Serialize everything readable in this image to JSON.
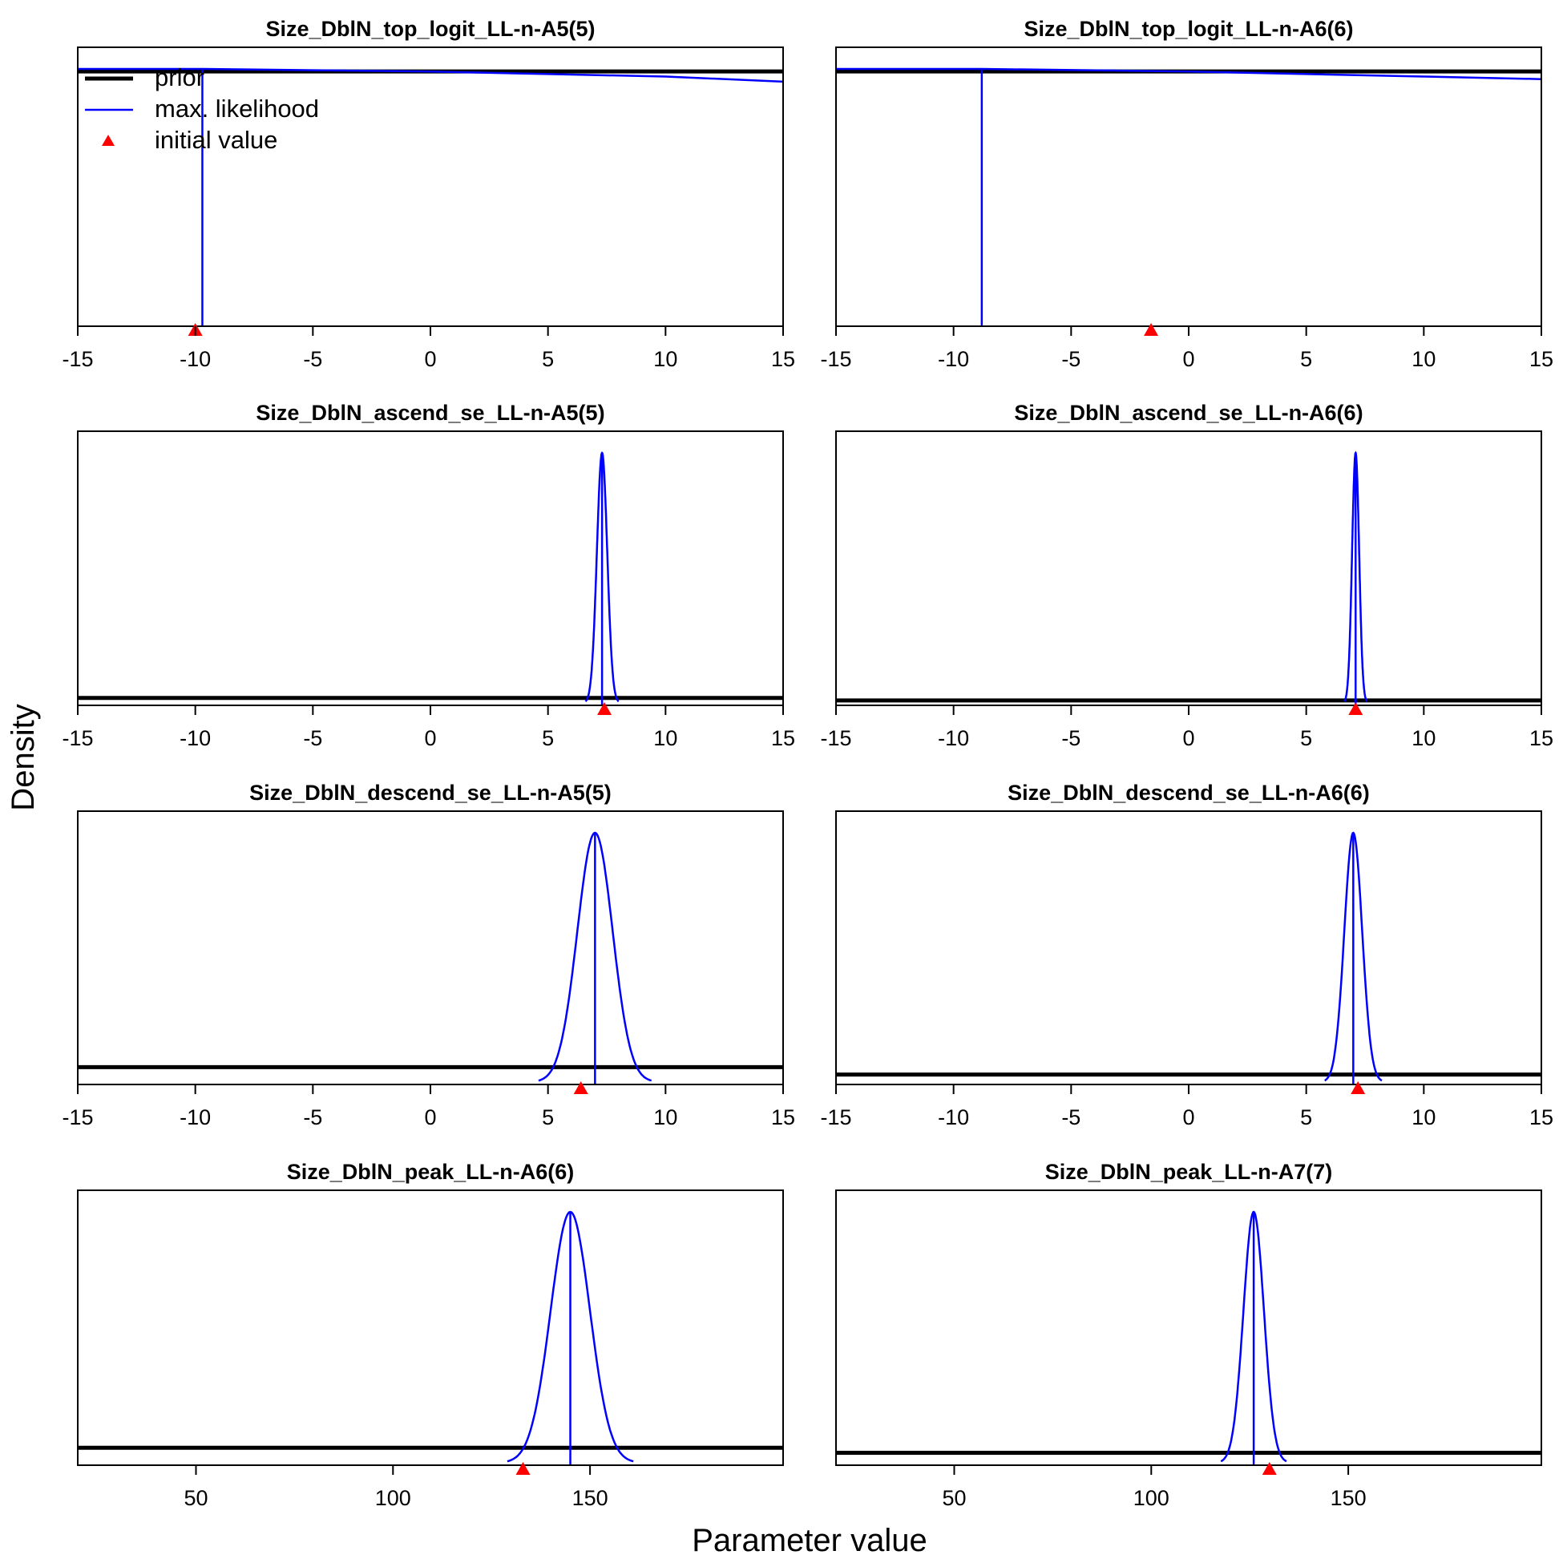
{
  "figure": {
    "ylabel": "Density",
    "xlabel": "Parameter value"
  },
  "legend": {
    "placement": "top-left of first panel",
    "items": [
      {
        "label": "prior",
        "kind": "line",
        "color": "#000000"
      },
      {
        "label": "max. likelihood",
        "kind": "line",
        "color": "#0000ff"
      },
      {
        "label": "initial value",
        "kind": "triangle",
        "color": "#ff0000"
      }
    ]
  },
  "colors": {
    "prior": "#000000",
    "mle": "#0000ff",
    "init": "#ff0000"
  },
  "chart_data": [
    {
      "type": "line",
      "title": "Size_DblN_top_logit_LL-n-A5(5)",
      "xlim": [
        -15,
        15
      ],
      "xticks": [
        "-15",
        "-10",
        "-5",
        "0",
        "5",
        "10",
        "15"
      ],
      "ylim": [
        0,
        1
      ],
      "prior_level": 0.99,
      "mle_estimate": -9.7,
      "mle_curve": [
        [
          -15,
          1.0
        ],
        [
          -10,
          1.0
        ],
        [
          -9.7,
          1.0
        ],
        [
          0,
          0.99
        ],
        [
          5,
          0.98
        ],
        [
          10,
          0.97
        ],
        [
          15,
          0.95
        ]
      ],
      "initial_value": -10
    },
    {
      "type": "line",
      "title": "Size_DblN_top_logit_LL-n-A6(6)",
      "xlim": [
        -15,
        15
      ],
      "xticks": [
        "-15",
        "-10",
        "-5",
        "0",
        "5",
        "10",
        "15"
      ],
      "ylim": [
        0,
        1
      ],
      "prior_level": 0.99,
      "mle_estimate": -8.8,
      "mle_curve": [
        [
          -15,
          1.0
        ],
        [
          -8.8,
          1.0
        ],
        [
          0,
          0.99
        ],
        [
          5,
          0.98
        ],
        [
          10,
          0.97
        ],
        [
          15,
          0.96
        ]
      ],
      "initial_value": -1.6
    },
    {
      "type": "line",
      "title": "Size_DblN_ascend_se_LL-n-A5(5)",
      "xlim": [
        -15,
        15
      ],
      "xticks": [
        "-15",
        "-10",
        "-5",
        "0",
        "5",
        "10",
        "15"
      ],
      "ylim": [
        0,
        1
      ],
      "prior_level": 0.02,
      "mle_estimate": 7.3,
      "mle_sd": 0.22,
      "initial_value": 7.4
    },
    {
      "type": "line",
      "title": "Size_DblN_ascend_se_LL-n-A6(6)",
      "xlim": [
        -15,
        15
      ],
      "xticks": [
        "-15",
        "-10",
        "-5",
        "0",
        "5",
        "10",
        "15"
      ],
      "ylim": [
        0,
        1
      ],
      "prior_level": 0.01,
      "mle_estimate": 7.1,
      "mle_sd": 0.15,
      "initial_value": 7.1
    },
    {
      "type": "line",
      "title": "Size_DblN_descend_se_LL-n-A5(5)",
      "xlim": [
        -15,
        15
      ],
      "xticks": [
        "-15",
        "-10",
        "-5",
        "0",
        "5",
        "10",
        "15"
      ],
      "ylim": [
        0,
        1
      ],
      "prior_level": 0.06,
      "mle_estimate": 7.0,
      "mle_sd": 0.75,
      "initial_value": 6.4
    },
    {
      "type": "line",
      "title": "Size_DblN_descend_se_LL-n-A6(6)",
      "xlim": [
        -15,
        15
      ],
      "xticks": [
        "-15",
        "-10",
        "-5",
        "0",
        "5",
        "10",
        "15"
      ],
      "ylim": [
        0,
        1
      ],
      "prior_level": 0.03,
      "mle_estimate": 7.0,
      "mle_sd": 0.38,
      "initial_value": 7.2
    },
    {
      "type": "line",
      "title": "Size_DblN_peak_LL-n-A6(6)",
      "xlim": [
        20,
        199
      ],
      "xticks": [
        "50",
        "100",
        "150"
      ],
      "ylim": [
        0,
        1
      ],
      "prior_level": 0.06,
      "mle_estimate": 145,
      "mle_sd": 5.0,
      "initial_value": 133
    },
    {
      "type": "line",
      "title": "Size_DblN_peak_LL-n-A7(7)",
      "xlim": [
        20,
        199
      ],
      "xticks": [
        "50",
        "100",
        "150"
      ],
      "ylim": [
        0,
        1
      ],
      "prior_level": 0.04,
      "mle_estimate": 126,
      "mle_sd": 2.6,
      "initial_value": 130
    }
  ]
}
